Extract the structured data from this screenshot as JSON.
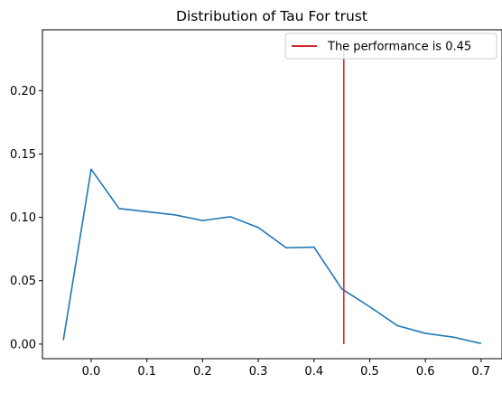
{
  "chart_data": {
    "type": "line",
    "title": "Distribution of Tau For trust",
    "xlabel": "",
    "ylabel": "",
    "xlim": [
      -0.0875,
      0.7375
    ],
    "ylim": [
      -0.0115,
      0.248
    ],
    "x_ticks": [
      0.0,
      0.1,
      0.2,
      0.3,
      0.4,
      0.5,
      0.6,
      0.7
    ],
    "x_tick_labels": [
      "0.0",
      "0.1",
      "0.2",
      "0.3",
      "0.4",
      "0.5",
      "0.6",
      "0.7"
    ],
    "y_ticks": [
      0.0,
      0.05,
      0.1,
      0.15,
      0.2
    ],
    "y_tick_labels": [
      "0.00",
      "0.05",
      "0.10",
      "0.15",
      "0.20"
    ],
    "grid": false,
    "legend_position": "top-right",
    "series": [
      {
        "color": "#1f77b4",
        "x": [
          -0.05,
          0.0,
          0.05,
          0.1,
          0.15,
          0.2,
          0.25,
          0.3,
          0.35,
          0.4,
          0.45,
          0.5,
          0.55,
          0.6,
          0.65,
          0.7
        ],
        "y": [
          0.003,
          0.138,
          0.107,
          0.1045,
          0.102,
          0.0975,
          0.1005,
          0.092,
          0.076,
          0.0765,
          0.0435,
          0.0295,
          0.0145,
          0.0085,
          0.0055,
          0.0005
        ]
      }
    ],
    "reference_line": {
      "name": "The performance is 0.45",
      "color": "#d62728",
      "x": 0.4535,
      "y_range": [
        0.0,
        0.237
      ]
    }
  }
}
